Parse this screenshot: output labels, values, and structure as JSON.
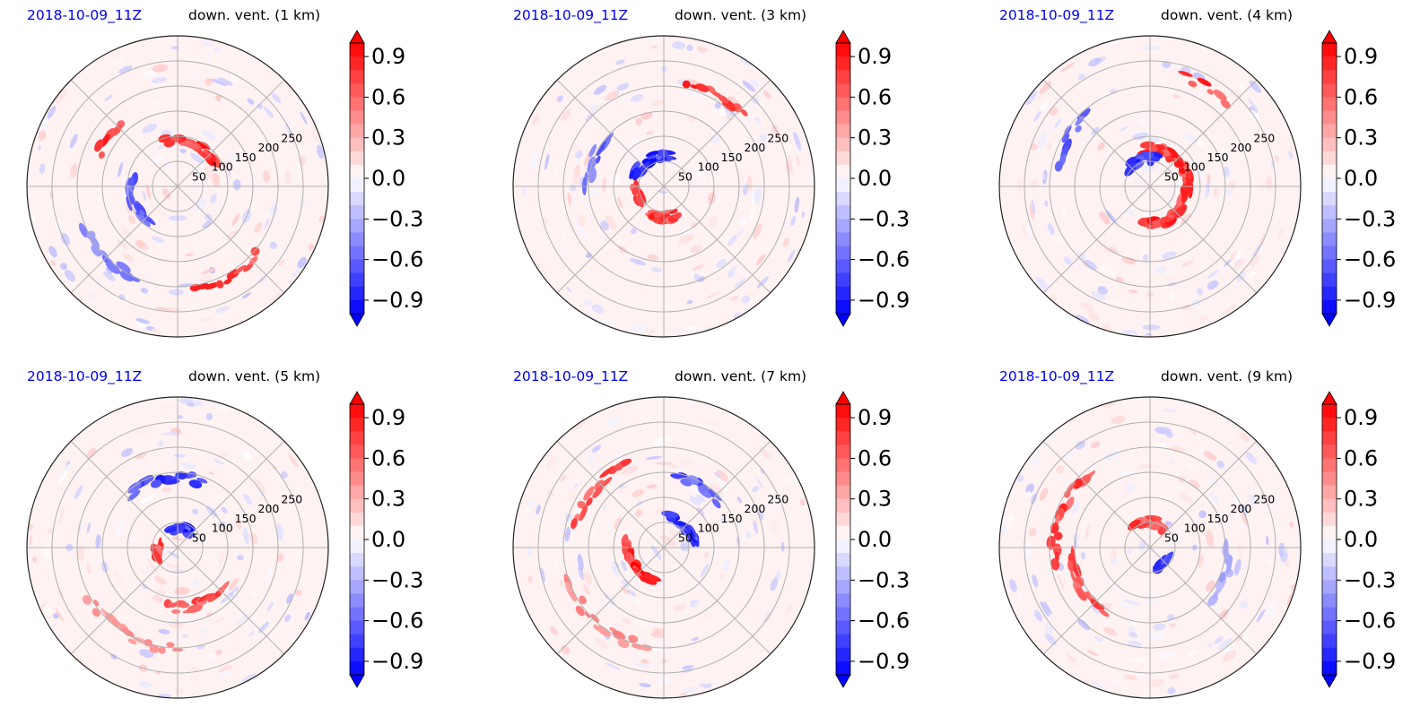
{
  "figure": {
    "colors": {
      "negative": "#0000ff",
      "positive": "#ff0000",
      "neutral": "#ffffff",
      "date_text": "#0000ff",
      "grid": "#b0b0b0"
    }
  },
  "chart_data": [
    {
      "type": "heatmap",
      "projection": "polar",
      "title_left": "2018-10-09_11Z",
      "title_right": "down. vent. (1 km)",
      "radial_ticks": [
        "50",
        "100",
        "150",
        "200",
        "250"
      ],
      "radial_max": 300,
      "colorbar": {
        "ticks": [
          "0.9",
          "0.6",
          "0.3",
          "0.0",
          "−0.3",
          "−0.6",
          "−0.9"
        ],
        "range": [
          -1.0,
          1.0
        ],
        "extend": "both",
        "levels": 20
      },
      "features": [
        {
          "sign": 1,
          "angle": 70,
          "radius": 90,
          "span": 70,
          "strength": 0.95
        },
        {
          "sign": 1,
          "angle": 145,
          "radius": 170,
          "span": 25,
          "strength": 0.9
        },
        {
          "sign": 1,
          "angle": -60,
          "radius": 210,
          "span": 40,
          "strength": 0.9
        },
        {
          "sign": -1,
          "angle": 200,
          "radius": 95,
          "span": 60,
          "strength": 0.8
        },
        {
          "sign": -1,
          "angle": 225,
          "radius": 200,
          "span": 40,
          "strength": 0.6
        }
      ]
    },
    {
      "type": "heatmap",
      "projection": "polar",
      "title_left": "2018-10-09_11Z",
      "title_right": "down. vent. (3 km)",
      "radial_ticks": [
        "50",
        "100",
        "150",
        "200",
        "250"
      ],
      "radial_max": 300,
      "colorbar": {
        "ticks": [
          "0.9",
          "0.6",
          "0.3",
          "0.0",
          "−0.3",
          "−0.6",
          "−0.9"
        ],
        "range": [
          -1.0,
          1.0
        ],
        "extend": "both",
        "levels": 20
      },
      "features": [
        {
          "sign": 1,
          "angle": 60,
          "radius": 210,
          "span": 35,
          "strength": 0.95
        },
        {
          "sign": 1,
          "angle": -90,
          "radius": 60,
          "span": 50,
          "strength": 0.9
        },
        {
          "sign": 1,
          "angle": 195,
          "radius": 55,
          "span": 35,
          "strength": 0.85
        },
        {
          "sign": -1,
          "angle": 120,
          "radius": 60,
          "span": 80,
          "strength": 0.95
        },
        {
          "sign": -1,
          "angle": 160,
          "radius": 150,
          "span": 40,
          "strength": 0.7
        }
      ]
    },
    {
      "type": "heatmap",
      "projection": "polar",
      "title_left": "2018-10-09_11Z",
      "title_right": "down. vent. (4 km)",
      "radial_ticks": [
        "50",
        "100",
        "150",
        "200",
        "250"
      ],
      "radial_max": 300,
      "colorbar": {
        "ticks": [
          "0.9",
          "0.6",
          "0.3",
          "0.0",
          "−0.3",
          "−0.6",
          "−0.9"
        ],
        "range": [
          -1.0,
          1.0
        ],
        "extend": "both",
        "levels": 20
      },
      "features": [
        {
          "sign": 1,
          "angle": 0,
          "radius": 75,
          "span": 200,
          "strength": 0.95
        },
        {
          "sign": 1,
          "angle": 60,
          "radius": 230,
          "span": 25,
          "strength": 0.9
        },
        {
          "sign": -1,
          "angle": 110,
          "radius": 55,
          "span": 60,
          "strength": 0.95
        },
        {
          "sign": -1,
          "angle": 150,
          "radius": 190,
          "span": 35,
          "strength": 0.75
        }
      ]
    },
    {
      "type": "heatmap",
      "projection": "polar",
      "title_left": "2018-10-09_11Z",
      "title_right": "down. vent. (5 km)",
      "radial_ticks": [
        "50",
        "100",
        "150",
        "200",
        "250"
      ],
      "radial_max": 300,
      "colorbar": {
        "ticks": [
          "0.9",
          "0.6",
          "0.3",
          "0.0",
          "−0.3",
          "−0.6",
          "−0.9"
        ],
        "range": [
          -1.0,
          1.0
        ],
        "extend": "both",
        "levels": 20
      },
      "features": [
        {
          "sign": -1,
          "angle": 100,
          "radius": 140,
          "span": 60,
          "strength": 0.9
        },
        {
          "sign": -1,
          "angle": 80,
          "radius": 40,
          "span": 60,
          "strength": 0.95
        },
        {
          "sign": 1,
          "angle": 190,
          "radius": 40,
          "span": 35,
          "strength": 0.9
        },
        {
          "sign": 1,
          "angle": -70,
          "radius": 120,
          "span": 60,
          "strength": 0.85
        },
        {
          "sign": 1,
          "angle": -120,
          "radius": 200,
          "span": 60,
          "strength": 0.5
        }
      ]
    },
    {
      "type": "heatmap",
      "projection": "polar",
      "title_left": "2018-10-09_11Z",
      "title_right": "down. vent. (7 km)",
      "radial_ticks": [
        "50",
        "100",
        "150",
        "200",
        "250"
      ],
      "radial_max": 300,
      "colorbar": {
        "ticks": [
          "0.9",
          "0.6",
          "0.3",
          "0.0",
          "−0.3",
          "−0.6",
          "−0.9"
        ],
        "range": [
          -1.0,
          1.0
        ],
        "extend": "both",
        "levels": 20
      },
      "features": [
        {
          "sign": 1,
          "angle": 210,
          "radius": 70,
          "span": 80,
          "strength": 1.0
        },
        {
          "sign": 1,
          "angle": 140,
          "radius": 180,
          "span": 50,
          "strength": 0.8
        },
        {
          "sign": 1,
          "angle": 230,
          "radius": 200,
          "span": 60,
          "strength": 0.55
        },
        {
          "sign": -1,
          "angle": 45,
          "radius": 60,
          "span": 70,
          "strength": 0.95
        },
        {
          "sign": -1,
          "angle": 60,
          "radius": 140,
          "span": 40,
          "strength": 0.8
        }
      ]
    },
    {
      "type": "heatmap",
      "projection": "polar",
      "title_left": "2018-10-09_11Z",
      "title_right": "down. vent. (9 km)",
      "radial_ticks": [
        "50",
        "100",
        "150",
        "200",
        "250"
      ],
      "radial_max": 300,
      "colorbar": {
        "ticks": [
          "0.9",
          "0.6",
          "0.3",
          "0.0",
          "−0.3",
          "−0.6",
          "−0.9"
        ],
        "range": [
          -1.0,
          1.0
        ],
        "extend": "both",
        "levels": 20
      },
      "features": [
        {
          "sign": 1,
          "angle": 160,
          "radius": 190,
          "span": 60,
          "strength": 0.85
        },
        {
          "sign": 1,
          "angle": 210,
          "radius": 160,
          "span": 50,
          "strength": 0.8
        },
        {
          "sign": 1,
          "angle": 90,
          "radius": 50,
          "span": 70,
          "strength": 0.85
        },
        {
          "sign": -1,
          "angle": -50,
          "radius": 40,
          "span": 40,
          "strength": 0.95
        },
        {
          "sign": -1,
          "angle": -20,
          "radius": 160,
          "span": 40,
          "strength": 0.4
        }
      ]
    }
  ]
}
